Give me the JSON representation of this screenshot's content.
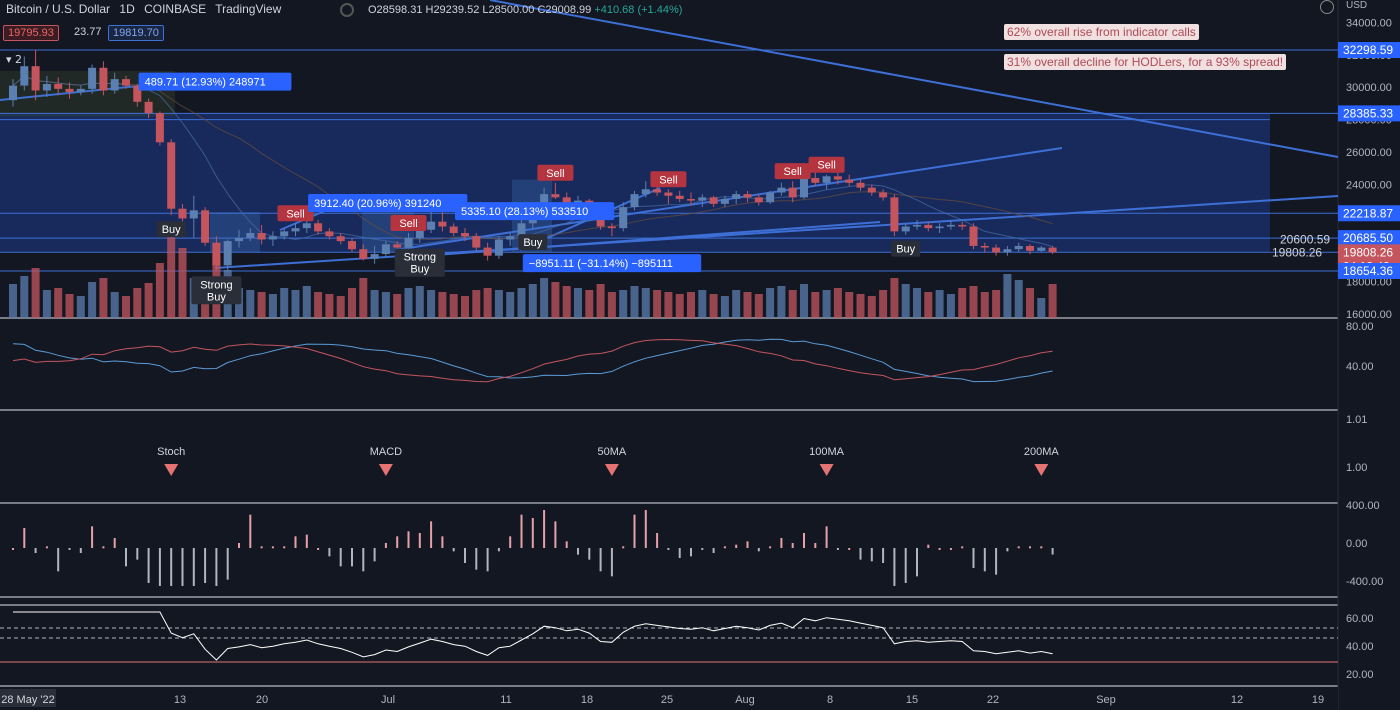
{
  "header": {
    "symbol": "Bitcoin / U.S. Dollar",
    "interval": "1D",
    "exchange": "COINBASE",
    "brand": "TradingView",
    "open": "O28598.31",
    "high": "H29239.52",
    "low": "L28500.00",
    "close": "C29008.99",
    "change": "+410.68 (+1.44%)",
    "bid": "19795.93",
    "spread": "23.77",
    "ask": "19819.70",
    "currency": "USD",
    "indicator_count": "2"
  },
  "notes": [
    "62% overall rise from indicator calls",
    "31% overall decline for HODLers, for a 93% spread!"
  ],
  "colors": {
    "background": "#131722",
    "up": "#5b7fb0",
    "down": "#c4555e",
    "line": "#3d6fd6",
    "zone": "#1d3b8a",
    "sell_badge": "#b4343f"
  },
  "chart_data": {
    "type": "candlestick",
    "symbol": "BTCUSD",
    "timeframe": "1D",
    "x_ticks": [
      "28 May '22",
      "13",
      "20",
      "Jul",
      "11",
      "18",
      "25",
      "Aug",
      "8",
      "15",
      "22",
      "Sep",
      "12",
      "19"
    ],
    "price_ticks": [
      34000,
      32000,
      30000,
      28000,
      26000,
      24000,
      22000,
      20000,
      18000,
      16000
    ],
    "price_labels": [
      {
        "text": "32298.59",
        "value": 32298.59
      },
      {
        "text": "28385.33",
        "value": 28385.33
      },
      {
        "text": "22218.87",
        "value": 22218.87
      },
      {
        "text": "20685.50",
        "value": 20685.5
      },
      {
        "text": "19808.26",
        "value": 19808.26,
        "sub": "04:18:42",
        "current": true
      },
      {
        "text": "18654.36",
        "value": 18654.36
      }
    ],
    "level_label": {
      "text": "20600.59",
      "value": 20600.59
    },
    "level_label2": {
      "text": "19808.26",
      "value": 19808.26
    },
    "candles": [
      {
        "o": 29200,
        "h": 30500,
        "l": 28800,
        "c": 30100
      },
      {
        "o": 30100,
        "h": 31900,
        "l": 29800,
        "c": 31300
      },
      {
        "o": 31300,
        "h": 32300,
        "l": 29200,
        "c": 29800
      },
      {
        "o": 29800,
        "h": 30700,
        "l": 29400,
        "c": 30200
      },
      {
        "o": 30200,
        "h": 30600,
        "l": 29500,
        "c": 29900
      },
      {
        "o": 29900,
        "h": 30300,
        "l": 29300,
        "c": 29700
      },
      {
        "o": 29700,
        "h": 30100,
        "l": 29500,
        "c": 29900
      },
      {
        "o": 29900,
        "h": 31400,
        "l": 29600,
        "c": 31200
      },
      {
        "o": 31200,
        "h": 31600,
        "l": 29500,
        "c": 29800
      },
      {
        "o": 29800,
        "h": 30900,
        "l": 29600,
        "c": 30500
      },
      {
        "o": 30500,
        "h": 30700,
        "l": 29900,
        "c": 30100
      },
      {
        "o": 30100,
        "h": 30200,
        "l": 28800,
        "c": 29100
      },
      {
        "o": 29100,
        "h": 29300,
        "l": 28100,
        "c": 28400
      },
      {
        "o": 28400,
        "h": 28500,
        "l": 26400,
        "c": 26600
      },
      {
        "o": 26600,
        "h": 26800,
        "l": 22100,
        "c": 22500
      },
      {
        "o": 22500,
        "h": 22800,
        "l": 20800,
        "c": 21900
      },
      {
        "o": 21900,
        "h": 23300,
        "l": 20700,
        "c": 22400
      },
      {
        "o": 22400,
        "h": 22600,
        "l": 20200,
        "c": 20400
      },
      {
        "o": 20400,
        "h": 20800,
        "l": 18700,
        "c": 19000
      },
      {
        "o": 19000,
        "h": 20600,
        "l": 18600,
        "c": 20500
      },
      {
        "o": 20500,
        "h": 21200,
        "l": 20100,
        "c": 20700
      },
      {
        "o": 20700,
        "h": 21300,
        "l": 20500,
        "c": 21000
      },
      {
        "o": 21000,
        "h": 21500,
        "l": 20300,
        "c": 20600
      },
      {
        "o": 20600,
        "h": 21100,
        "l": 20200,
        "c": 20800
      },
      {
        "o": 20800,
        "h": 21300,
        "l": 20600,
        "c": 21100
      },
      {
        "o": 21100,
        "h": 21600,
        "l": 20800,
        "c": 21300
      },
      {
        "o": 21300,
        "h": 21900,
        "l": 21000,
        "c": 21600
      },
      {
        "o": 21600,
        "h": 21800,
        "l": 20900,
        "c": 21100
      },
      {
        "o": 21100,
        "h": 21300,
        "l": 20600,
        "c": 20800
      },
      {
        "o": 20800,
        "h": 21000,
        "l": 20300,
        "c": 20500
      },
      {
        "o": 20500,
        "h": 20700,
        "l": 19800,
        "c": 20000
      },
      {
        "o": 20000,
        "h": 20300,
        "l": 19300,
        "c": 19400
      },
      {
        "o": 19400,
        "h": 20200,
        "l": 19100,
        "c": 19700
      },
      {
        "o": 19700,
        "h": 20500,
        "l": 19500,
        "c": 20300
      },
      {
        "o": 20300,
        "h": 20500,
        "l": 19800,
        "c": 20100
      },
      {
        "o": 20100,
        "h": 21000,
        "l": 19900,
        "c": 20700
      },
      {
        "o": 20700,
        "h": 21400,
        "l": 20400,
        "c": 21200
      },
      {
        "o": 21200,
        "h": 22300,
        "l": 21000,
        "c": 21700
      },
      {
        "o": 21700,
        "h": 22300,
        "l": 21100,
        "c": 21400
      },
      {
        "o": 21400,
        "h": 21600,
        "l": 20800,
        "c": 21000
      },
      {
        "o": 21000,
        "h": 21300,
        "l": 20500,
        "c": 20800
      },
      {
        "o": 20800,
        "h": 21000,
        "l": 19900,
        "c": 20100
      },
      {
        "o": 20100,
        "h": 20400,
        "l": 19300,
        "c": 19600
      },
      {
        "o": 19600,
        "h": 20800,
        "l": 19400,
        "c": 20600
      },
      {
        "o": 20600,
        "h": 21000,
        "l": 20200,
        "c": 20800
      },
      {
        "o": 20800,
        "h": 21800,
        "l": 20600,
        "c": 21600
      },
      {
        "o": 21600,
        "h": 22500,
        "l": 21300,
        "c": 22400
      },
      {
        "o": 22400,
        "h": 23800,
        "l": 22200,
        "c": 23400
      },
      {
        "o": 23400,
        "h": 24100,
        "l": 23100,
        "c": 23200
      },
      {
        "o": 23200,
        "h": 23500,
        "l": 22500,
        "c": 22800
      },
      {
        "o": 22800,
        "h": 23300,
        "l": 22400,
        "c": 23000
      },
      {
        "o": 23000,
        "h": 23100,
        "l": 22300,
        "c": 22500
      },
      {
        "o": 22500,
        "h": 22700,
        "l": 21200,
        "c": 21400
      },
      {
        "o": 21400,
        "h": 21600,
        "l": 20800,
        "c": 21300
      },
      {
        "o": 21300,
        "h": 22900,
        "l": 21100,
        "c": 22600
      },
      {
        "o": 22600,
        "h": 23600,
        "l": 22400,
        "c": 23400
      },
      {
        "o": 23400,
        "h": 24200,
        "l": 23200,
        "c": 23700
      },
      {
        "o": 23700,
        "h": 24100,
        "l": 23300,
        "c": 23500
      },
      {
        "o": 23500,
        "h": 23700,
        "l": 22800,
        "c": 23300
      },
      {
        "o": 23300,
        "h": 23600,
        "l": 22900,
        "c": 23100
      },
      {
        "o": 23100,
        "h": 23500,
        "l": 22700,
        "c": 23000
      },
      {
        "o": 23000,
        "h": 23400,
        "l": 22600,
        "c": 23200
      },
      {
        "o": 23200,
        "h": 23300,
        "l": 22600,
        "c": 22800
      },
      {
        "o": 22800,
        "h": 23300,
        "l": 22600,
        "c": 23100
      },
      {
        "o": 23100,
        "h": 23600,
        "l": 22800,
        "c": 23400
      },
      {
        "o": 23400,
        "h": 23600,
        "l": 22900,
        "c": 23200
      },
      {
        "o": 23200,
        "h": 23400,
        "l": 22700,
        "c": 22900
      },
      {
        "o": 22900,
        "h": 23600,
        "l": 22800,
        "c": 23500
      },
      {
        "o": 23500,
        "h": 24100,
        "l": 23300,
        "c": 23800
      },
      {
        "o": 23800,
        "h": 24200,
        "l": 22900,
        "c": 23200
      },
      {
        "o": 23200,
        "h": 24700,
        "l": 23100,
        "c": 24400
      },
      {
        "o": 24400,
        "h": 24900,
        "l": 23900,
        "c": 24100
      },
      {
        "o": 24100,
        "h": 24600,
        "l": 23700,
        "c": 24500
      },
      {
        "o": 24500,
        "h": 25000,
        "l": 24000,
        "c": 24300
      },
      {
        "o": 24300,
        "h": 24600,
        "l": 23900,
        "c": 24100
      },
      {
        "o": 24100,
        "h": 24300,
        "l": 23600,
        "c": 23800
      },
      {
        "o": 23800,
        "h": 24000,
        "l": 23300,
        "c": 23500
      },
      {
        "o": 23500,
        "h": 23700,
        "l": 23000,
        "c": 23200
      },
      {
        "o": 23200,
        "h": 23400,
        "l": 20800,
        "c": 21100
      },
      {
        "o": 21100,
        "h": 21600,
        "l": 20900,
        "c": 21400
      },
      {
        "o": 21400,
        "h": 21800,
        "l": 21200,
        "c": 21500
      },
      {
        "o": 21500,
        "h": 21700,
        "l": 21100,
        "c": 21300
      },
      {
        "o": 21300,
        "h": 21600,
        "l": 21000,
        "c": 21400
      },
      {
        "o": 21400,
        "h": 21800,
        "l": 21200,
        "c": 21500
      },
      {
        "o": 21500,
        "h": 21700,
        "l": 21200,
        "c": 21400
      },
      {
        "o": 21400,
        "h": 21600,
        "l": 20000,
        "c": 20200
      },
      {
        "o": 20200,
        "h": 20400,
        "l": 19800,
        "c": 20100
      },
      {
        "o": 20100,
        "h": 20300,
        "l": 19600,
        "c": 19800
      },
      {
        "o": 19800,
        "h": 20200,
        "l": 19600,
        "c": 20000
      },
      {
        "o": 20000,
        "h": 20400,
        "l": 19800,
        "c": 20200
      },
      {
        "o": 20200,
        "h": 20300,
        "l": 19700,
        "c": 19900
      },
      {
        "o": 19900,
        "h": 20200,
        "l": 19800,
        "c": 20100
      },
      {
        "o": 20100,
        "h": 20200,
        "l": 19700,
        "c": 19808
      }
    ],
    "volume_ticks": [
      "80.00",
      "40.00"
    ],
    "macd_ticks": [
      "1.01",
      "1.00"
    ],
    "osc_ticks": [
      "400.00",
      "0.00",
      "-400.00"
    ],
    "rsi_ticks": [
      "60.00",
      "40.00",
      "20.00"
    ],
    "signals": [
      {
        "text": "Buy",
        "type": "buy",
        "bar": 14
      },
      {
        "text": "Strong Buy",
        "type": "buy",
        "bar": 18
      },
      {
        "text": "Sell",
        "type": "sell",
        "bar": 25
      },
      {
        "text": "Strong Buy",
        "type": "buy",
        "bar": 36
      },
      {
        "text": "Sell",
        "type": "sell",
        "bar": 35
      },
      {
        "text": "Buy",
        "type": "buy",
        "bar": 46
      },
      {
        "text": "Sell",
        "type": "sell",
        "bar": 48
      },
      {
        "text": "Sell",
        "type": "sell",
        "bar": 58
      },
      {
        "text": "Sell",
        "type": "sell",
        "bar": 69
      },
      {
        "text": "Sell",
        "type": "sell",
        "bar": 72
      },
      {
        "text": "Buy",
        "type": "buy",
        "bar": 79
      }
    ],
    "measures": [
      {
        "text": "489.71 (12.93%) 248971",
        "bar": 12
      },
      {
        "text": "3912.40 (20.96%) 391240",
        "bar": 27
      },
      {
        "text": "5335.10 (28.13%) 533510",
        "bar": 40
      },
      {
        "text": "−8951.11 (−31.14%) −895111",
        "bar": 46
      }
    ],
    "markers": [
      {
        "text": "Stoch",
        "bar": 14
      },
      {
        "text": "MACD",
        "bar": 33
      },
      {
        "text": "50MA",
        "bar": 53
      },
      {
        "text": "100MA",
        "bar": 72
      },
      {
        "text": "200MA",
        "bar": 91
      }
    ]
  }
}
